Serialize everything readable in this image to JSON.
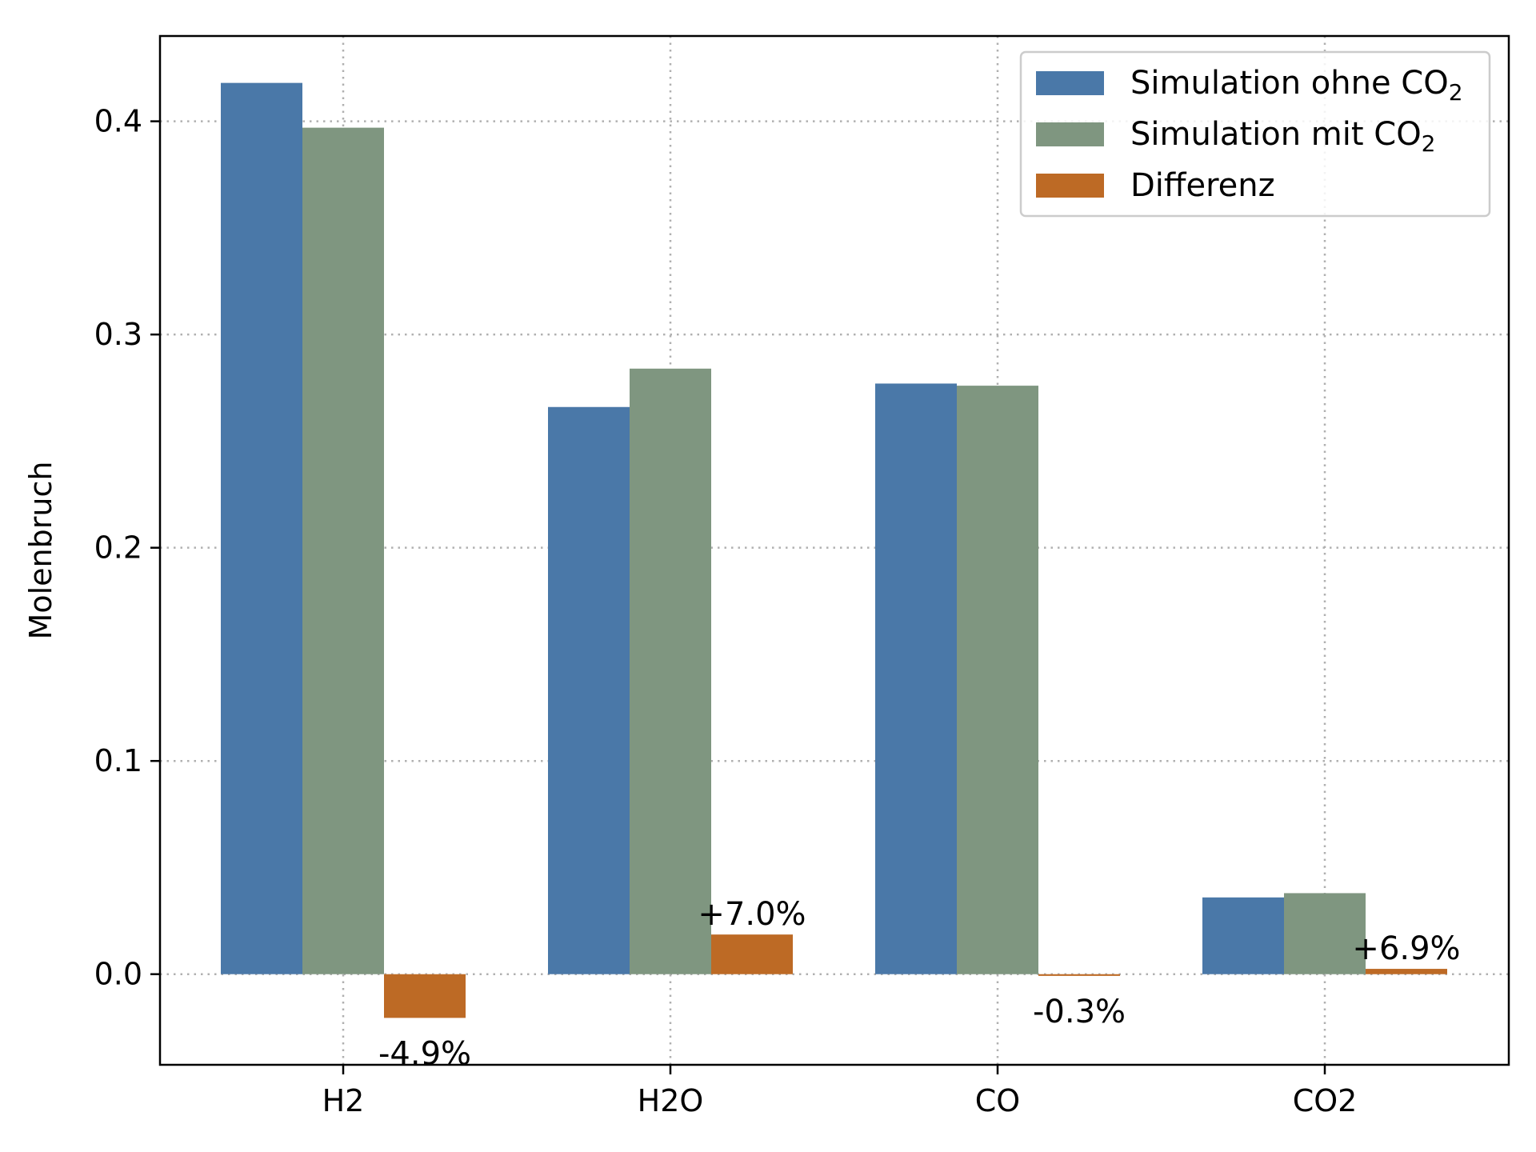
{
  "chart_data": {
    "type": "bar",
    "categories": [
      "H2",
      "H2O",
      "CO",
      "CO2"
    ],
    "series": [
      {
        "name": "Simulation ohne CO₂",
        "legend_text": "Simulation ohne CO",
        "legend_sub": "2",
        "color": "#4a78a8",
        "values": [
          0.418,
          0.266,
          0.277,
          0.036
        ]
      },
      {
        "name": "Simulation mit CO₂",
        "legend_text": "Simulation mit CO",
        "legend_sub": "2",
        "color": "#7f9680",
        "values": [
          0.397,
          0.284,
          0.276,
          0.038
        ]
      },
      {
        "name": "Differenz",
        "legend_text": "Differenz",
        "legend_sub": "",
        "color": "#bd6a25",
        "values": [
          -0.0205,
          0.0186,
          -0.0008,
          0.0025
        ],
        "labels": [
          "-4.9%",
          "+7.0%",
          "-0.3%",
          "+6.9%"
        ]
      }
    ],
    "ylabel": "Molenbruch",
    "xlabel": "",
    "ylim": [
      -0.0425,
      0.44
    ],
    "yticks": [
      0.0,
      0.1,
      0.2,
      0.3,
      0.4
    ],
    "ytick_labels": [
      "0.0",
      "0.1",
      "0.2",
      "0.3",
      "0.4"
    ],
    "grid": true,
    "grid_style": "dotted",
    "legend_position": "top-right"
  }
}
